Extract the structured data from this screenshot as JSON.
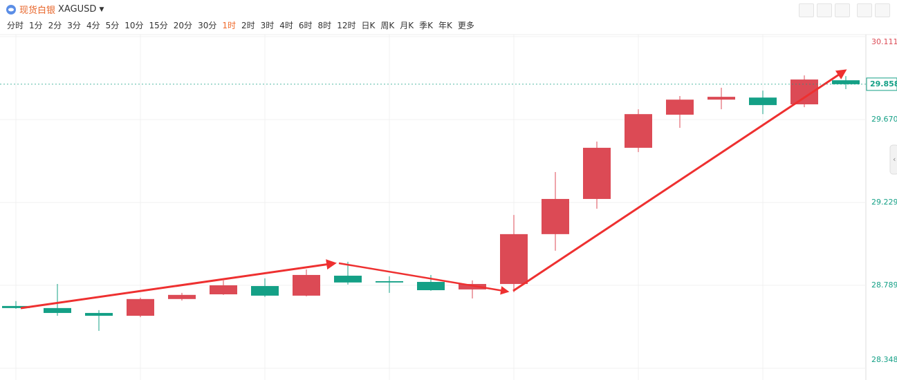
{
  "header": {
    "name": "现货白银",
    "symbol": "XAGUSD"
  },
  "timeframes": [
    "分时",
    "1分",
    "2分",
    "3分",
    "4分",
    "5分",
    "10分",
    "15分",
    "20分",
    "30分",
    "1时",
    "2时",
    "3时",
    "4时",
    "6时",
    "8时",
    "12时",
    "日K",
    "周K",
    "月K",
    "季K",
    "年K",
    "更多"
  ],
  "selected_index": 10,
  "chart_data": {
    "type": "candlestick",
    "open": [
      28.679,
      28.668,
      28.642,
      28.627,
      28.716,
      28.741,
      28.785,
      28.734,
      28.84,
      28.811,
      28.807,
      28.767,
      28.796,
      29.061,
      29.248,
      29.52,
      29.696,
      29.776,
      29.787,
      29.751,
      29.879
    ],
    "high": [
      28.705,
      28.796,
      28.657,
      28.723,
      28.749,
      28.815,
      28.826,
      28.873,
      28.914,
      28.837,
      28.844,
      28.815,
      29.163,
      29.391,
      29.553,
      29.725,
      29.795,
      29.839,
      29.824,
      29.905,
      29.901
    ],
    "low": [
      28.664,
      28.627,
      28.547,
      28.62,
      28.708,
      28.738,
      28.727,
      28.73,
      28.793,
      28.749,
      28.76,
      28.719,
      28.752,
      28.973,
      29.196,
      29.497,
      29.626,
      29.725,
      29.699,
      29.736,
      29.832
    ],
    "close": [
      28.668,
      28.642,
      28.627,
      28.716,
      28.738,
      28.789,
      28.734,
      28.844,
      28.804,
      28.804,
      28.763,
      28.796,
      29.061,
      29.248,
      29.52,
      29.699,
      29.776,
      29.791,
      29.747,
      29.883,
      29.858
    ],
    "up_color": "#dc4a55",
    "down_color": "#14a086",
    "ylim": [
      28.348,
      30.111
    ],
    "yticks": [
      28.348,
      28.789,
      29.229,
      {
        "value": 29.67,
        "label": "29.670"
      },
      30.111
    ],
    "last_price": 29.858,
    "grid": true
  }
}
